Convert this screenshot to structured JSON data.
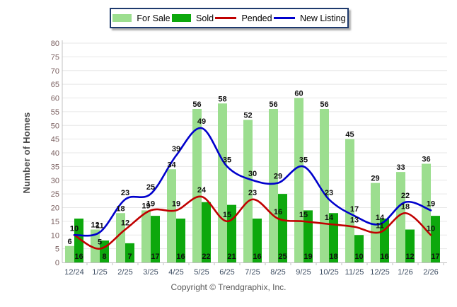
{
  "legend": {
    "items": [
      {
        "label": "For Sale",
        "swatch": "bar",
        "color": "#9CDE8F"
      },
      {
        "label": "Sold",
        "swatch": "bar",
        "color": "#0DA80D"
      },
      {
        "label": "Pended",
        "swatch": "line",
        "color": "#C00000"
      },
      {
        "label": "New Listing",
        "swatch": "line",
        "color": "#0000CC"
      }
    ]
  },
  "chart_data": {
    "type": "bar",
    "subtype": "grouped bars with smooth overlay lines",
    "categories": [
      "12/24",
      "1/25",
      "2/25",
      "3/25",
      "4/25",
      "5/25",
      "6/25",
      "7/25",
      "8/25",
      "9/25",
      "10/25",
      "11/25",
      "12/25",
      "1/26",
      "2/26"
    ],
    "series": [
      {
        "name": "For Sale",
        "type": "bar",
        "color": "#9CDE8F",
        "values": [
          6,
          12,
          18,
          19,
          34,
          56,
          58,
          52,
          56,
          60,
          56,
          45,
          29,
          33,
          36
        ],
        "label_position": "above-bar"
      },
      {
        "name": "Sold",
        "type": "bar",
        "color": "#0DA80D",
        "values": [
          16,
          8,
          7,
          17,
          16,
          22,
          21,
          16,
          25,
          19,
          18,
          10,
          16,
          12,
          17
        ],
        "label_position": "inside-bar-bottom"
      },
      {
        "name": "Pended",
        "type": "line",
        "color": "#C00000",
        "values": [
          10,
          5,
          12,
          19,
          19,
          24,
          15,
          23,
          16,
          15,
          14,
          13,
          11,
          18,
          10
        ],
        "label_position": "above-point"
      },
      {
        "name": "New Listing",
        "type": "line",
        "color": "#0000CC",
        "values": [
          10,
          11,
          23,
          25,
          39,
          49,
          35,
          30,
          29,
          35,
          23,
          17,
          14,
          22,
          19
        ],
        "label_position": "above-point"
      }
    ],
    "title": "",
    "xlabel": "",
    "ylabel": "Number of Homes",
    "ylim": [
      0,
      80
    ],
    "ytick_step": 5,
    "grid": "horizontal",
    "legend_position": "top-center"
  },
  "footer": {
    "copyright": "Copyright © Trendgraphix, Inc."
  },
  "style": {
    "grid_color": "#E7E7E7",
    "axis_color": "#C0C0C0",
    "ytick_color": "#7A5F5F",
    "xtick_color": "#3E4E63",
    "data_label_color": "#111111",
    "background": "#FFFFFF"
  }
}
